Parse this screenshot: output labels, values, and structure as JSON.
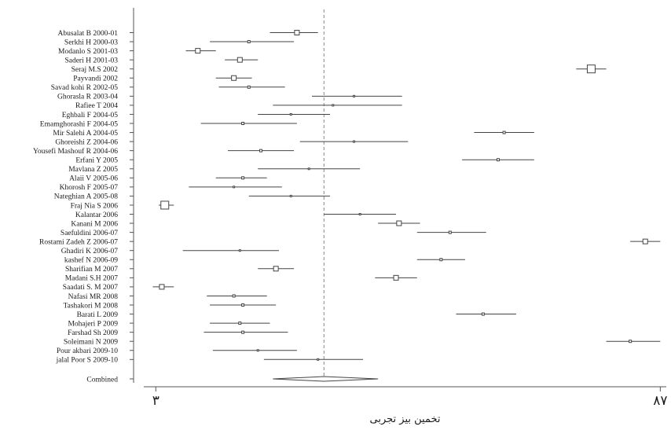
{
  "chart_data": {
    "type": "forest",
    "xlabel": "تخمین بیز تجربی",
    "xticks": [
      {
        "value": 3,
        "label": "۳"
      },
      {
        "value": 87,
        "label": "۸۷"
      }
    ],
    "xlim": [
      1,
      88
    ],
    "reference_line": 31,
    "studies": [
      {
        "label": "Abusalat B 2000-01",
        "estimate": 26.5,
        "lower": 22,
        "upper": 30,
        "box": "medium"
      },
      {
        "label": "Serkhi H 2000-03",
        "estimate": 18.5,
        "lower": 12,
        "upper": 26,
        "box": "small"
      },
      {
        "label": "Modanlo S 2001-03",
        "estimate": 10,
        "lower": 8,
        "upper": 13,
        "box": "medium"
      },
      {
        "label": "Saderi H 2001-03",
        "estimate": 17,
        "lower": 14.5,
        "upper": 20,
        "box": "medium"
      },
      {
        "label": "Seraj M.S 2002",
        "estimate": 75.5,
        "lower": 73,
        "upper": 78,
        "box": "large"
      },
      {
        "label": "Payvandi 2002",
        "estimate": 16,
        "lower": 13,
        "upper": 19,
        "box": "medium"
      },
      {
        "label": "Savad kohi R 2002-05",
        "estimate": 18.5,
        "lower": 13.5,
        "upper": 24.5,
        "box": "small"
      },
      {
        "label": "Ghorasla R 2003-04",
        "estimate": 36,
        "lower": 29,
        "upper": 44,
        "box": "tiny"
      },
      {
        "label": "Rafiee T 2004",
        "estimate": 32.5,
        "lower": 22.5,
        "upper": 44,
        "box": "tiny"
      },
      {
        "label": "Eghbali F 2004-05",
        "estimate": 25.5,
        "lower": 20,
        "upper": 32,
        "box": "tiny"
      },
      {
        "label": "Emamghorashi F 2004-05",
        "estimate": 17.5,
        "lower": 10.5,
        "upper": 26.5,
        "box": "small"
      },
      {
        "label": "Mir Salehi A 2004-05",
        "estimate": 61,
        "lower": 56,
        "upper": 66,
        "box": "small"
      },
      {
        "label": "Ghoreishi Z 2004-06",
        "estimate": 36,
        "lower": 27,
        "upper": 45,
        "box": "tiny"
      },
      {
        "label": "Yousefi Mashouf R 2004-06",
        "estimate": 20.5,
        "lower": 15,
        "upper": 26,
        "box": "small"
      },
      {
        "label": "Erfani Y 2005",
        "estimate": 60,
        "lower": 54,
        "upper": 66,
        "box": "small"
      },
      {
        "label": "Mavlana Z 2005",
        "estimate": 28.5,
        "lower": 20,
        "upper": 37,
        "box": "tiny"
      },
      {
        "label": "Alaii V 2005-06",
        "estimate": 17.5,
        "lower": 13,
        "upper": 21.5,
        "box": "small"
      },
      {
        "label": "Khorosh F 2005-07",
        "estimate": 16,
        "lower": 8.5,
        "upper": 24,
        "box": "tiny"
      },
      {
        "label": "Nateghian A 2005-08",
        "estimate": 25.5,
        "lower": 18.5,
        "upper": 32,
        "box": "tiny"
      },
      {
        "label": "Fraj Nia S 2006",
        "estimate": 4.5,
        "lower": 3.5,
        "upper": 6,
        "box": "large"
      },
      {
        "label": "Kalantar 2006",
        "estimate": 37,
        "lower": 31,
        "upper": 43,
        "box": "tiny"
      },
      {
        "label": "Kanani M 2006",
        "estimate": 43.5,
        "lower": 40,
        "upper": 47,
        "box": "medium"
      },
      {
        "label": "Saefuldini 2006-07",
        "estimate": 52,
        "lower": 46.5,
        "upper": 58,
        "box": "small"
      },
      {
        "label": "Rostami Zadeh Z 2006-07",
        "estimate": 84.5,
        "lower": 82,
        "upper": 87,
        "box": "medium"
      },
      {
        "label": "Ghadiri K 2006-07",
        "estimate": 17,
        "lower": 7.5,
        "upper": 23.5,
        "box": "tiny"
      },
      {
        "label": "kashef N 2006-09",
        "estimate": 50.5,
        "lower": 46.5,
        "upper": 54.5,
        "box": "small"
      },
      {
        "label": "Sharifian M 2007",
        "estimate": 23,
        "lower": 20,
        "upper": 26,
        "box": "medium"
      },
      {
        "label": "Madani S.H 2007",
        "estimate": 43,
        "lower": 39.5,
        "upper": 46.5,
        "box": "medium"
      },
      {
        "label": "Saadati S. M 2007",
        "estimate": 4,
        "lower": 2.5,
        "upper": 6,
        "box": "medium"
      },
      {
        "label": "Nafasi MR 2008",
        "estimate": 16,
        "lower": 11.5,
        "upper": 21.5,
        "box": "small"
      },
      {
        "label": "Tashakori M 2008",
        "estimate": 17.5,
        "lower": 12,
        "upper": 23,
        "box": "small"
      },
      {
        "label": "Barati L 2009",
        "estimate": 57.5,
        "lower": 53,
        "upper": 63,
        "box": "small"
      },
      {
        "label": "Mohajeri P 2009",
        "estimate": 17,
        "lower": 12,
        "upper": 22,
        "box": "small"
      },
      {
        "label": "Farshad Sh 2009",
        "estimate": 17.5,
        "lower": 11,
        "upper": 25,
        "box": "small"
      },
      {
        "label": "Soleimani N 2009",
        "estimate": 82,
        "lower": 78,
        "upper": 87,
        "box": "small"
      },
      {
        "label": "Pour akbari 2009-10",
        "estimate": 20,
        "lower": 12.5,
        "upper": 26.5,
        "box": "tiny"
      },
      {
        "label": "jalal Poor S 2009-10",
        "estimate": 30,
        "lower": 21,
        "upper": 37.5,
        "box": "tiny"
      }
    ],
    "combined": {
      "label": "Combined",
      "estimate": 31,
      "lower": 22.5,
      "upper": 40
    }
  }
}
